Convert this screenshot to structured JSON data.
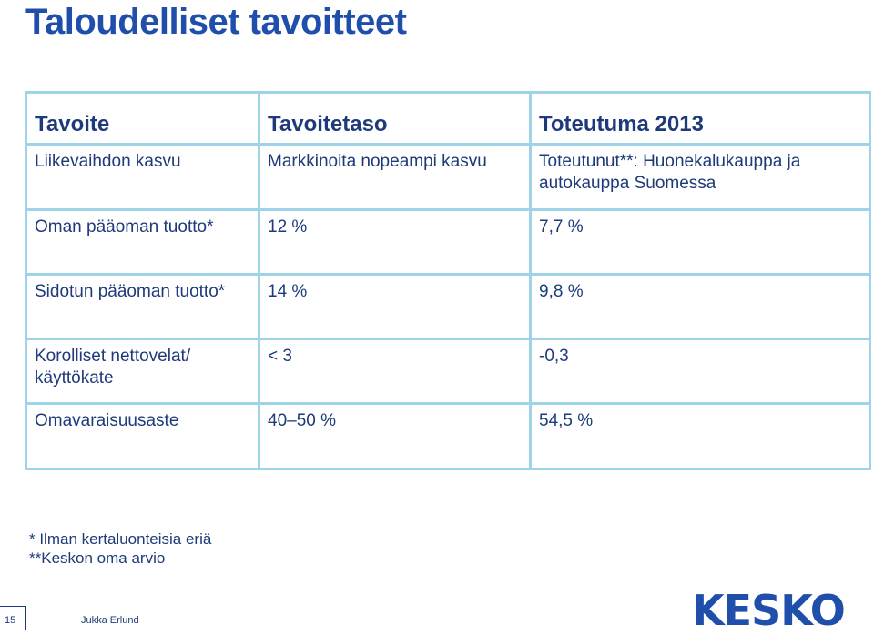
{
  "page": {
    "title": "Taloudelliset tavoitteet"
  },
  "table": {
    "headers": [
      "Tavoite",
      "Tavoitetaso",
      "Toteutuma 2013"
    ],
    "rows": [
      [
        "Liikevaihdon kasvu",
        "Markkinoita nopeampi kasvu",
        "Toteutunut**: Huonekalukauppa ja autokauppa Suomessa"
      ],
      [
        "Oman pääoman tuotto*",
        "12 %",
        "7,7 %"
      ],
      [
        "Sidotun pääoman tuotto*",
        "14 %",
        "9,8 %"
      ],
      [
        "Korolliset nettovelat/ käyttökate",
        "< 3",
        "-0,3"
      ],
      [
        "Omavaraisuusaste",
        "40–50 %",
        "54,5 %"
      ]
    ]
  },
  "notes": [
    "* Ilman kertaluonteisia eriä",
    "**Keskon oma arvio"
  ],
  "footer": {
    "page_number": "15",
    "author": "Jukka Erlund",
    "logo_text": "KESKO"
  },
  "colors": {
    "title": "#1f4eab",
    "text": "#1e3a7a",
    "table_border": "#9fd3e8"
  }
}
